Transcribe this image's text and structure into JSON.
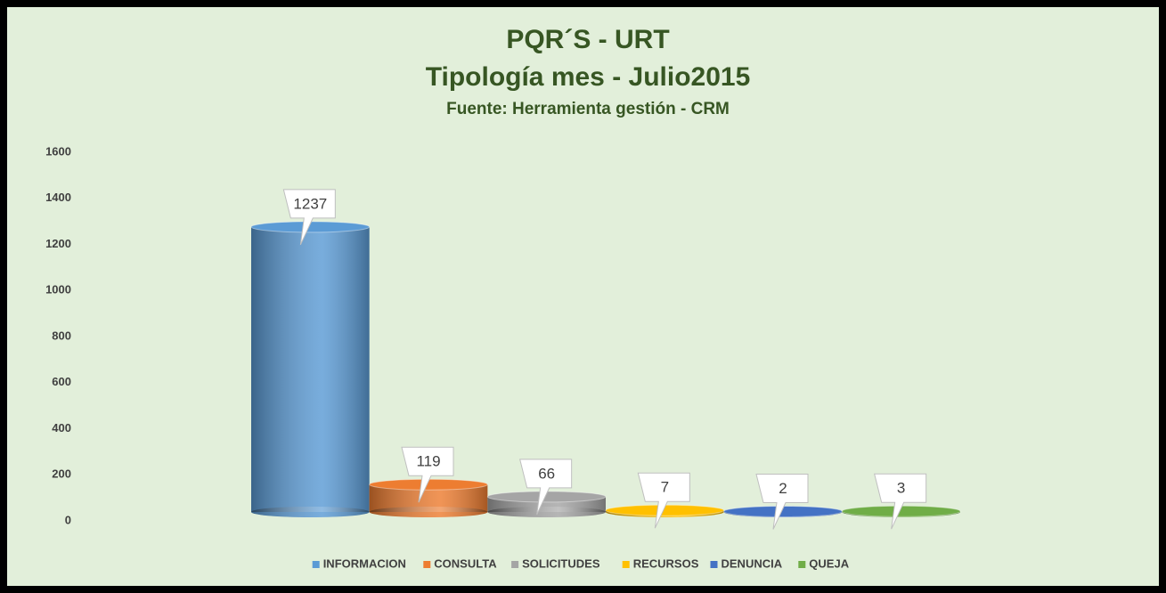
{
  "chart_data": {
    "type": "bar",
    "title": "PQR´S - URT",
    "subtitle": "Tipología mes - Julio2015",
    "source": "Fuente: Herramienta gestión - CRM",
    "categories": [
      null
    ],
    "series": [
      {
        "name": "INFORMACION",
        "color": "#5b9bd5",
        "values": [
          1237
        ]
      },
      {
        "name": "CONSULTA",
        "color": "#ed7d31",
        "values": [
          119
        ]
      },
      {
        "name": "SOLICITUDES",
        "color": "#a5a5a5",
        "values": [
          66
        ]
      },
      {
        "name": "RECURSOS",
        "color": "#ffc000",
        "values": [
          7
        ]
      },
      {
        "name": "DENUNCIA",
        "color": "#4472c4",
        "values": [
          2
        ]
      },
      {
        "name": "QUEJA",
        "color": "#70ad47",
        "values": [
          3
        ]
      }
    ],
    "ylim": [
      0,
      1600
    ],
    "yticks": [
      0,
      200,
      400,
      600,
      800,
      1000,
      1200,
      1400,
      1600
    ],
    "grid": false,
    "legend": "bottom"
  }
}
